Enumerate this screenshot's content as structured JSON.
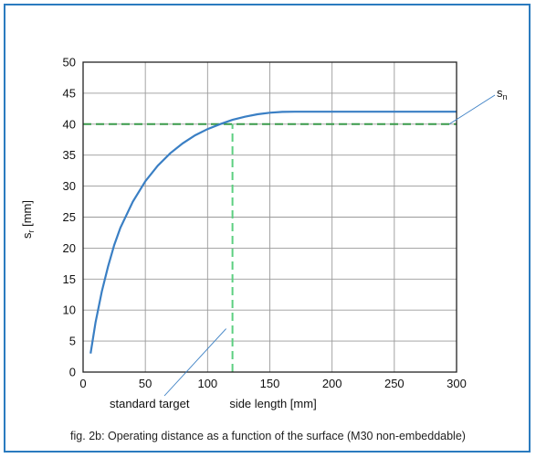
{
  "caption": "fig. 2b: Operating distance as a function of the surface (M30 non-embeddable)",
  "colors": {
    "frame": "#2b7bbf",
    "curve": "#3a7fc4",
    "dashed": "#3a9a4a",
    "vertical_dashed": "#5ccf80",
    "grid": "#9a9a9a"
  },
  "chart_data": {
    "type": "line",
    "title": "",
    "xlabel": "side length [mm]",
    "ylabel": "sr [mm]",
    "ylabel_main": "s",
    "ylabel_sub": "r",
    "ylabel_rest": " [mm]",
    "xlim": [
      0,
      300
    ],
    "ylim": [
      0,
      50
    ],
    "xticks": [
      0,
      50,
      100,
      150,
      200,
      250,
      300
    ],
    "yticks": [
      0,
      5,
      10,
      15,
      20,
      25,
      30,
      35,
      40,
      45,
      50
    ],
    "grid": true,
    "series": [
      {
        "x": [
          6,
          10,
          15,
          20,
          25,
          30,
          40,
          50,
          60,
          70,
          80,
          90,
          100,
          110,
          120,
          130,
          140,
          150,
          160,
          170,
          200,
          250,
          300
        ],
        "y": [
          3,
          8,
          13,
          17,
          20.5,
          23.3,
          27.5,
          30.8,
          33.3,
          35.3,
          36.9,
          38.2,
          39.2,
          40,
          40.7,
          41.2,
          41.6,
          41.85,
          41.97,
          42,
          42,
          42,
          42
        ]
      }
    ],
    "reference_lines": [
      {
        "type": "horizontal",
        "y": 40,
        "x_range": [
          0,
          300
        ]
      },
      {
        "type": "vertical",
        "x": 120,
        "y_range": [
          0,
          40
        ]
      }
    ],
    "annotations": {
      "sn_main": "s",
      "sn_sub": "n",
      "standard_target": "standard target"
    }
  }
}
